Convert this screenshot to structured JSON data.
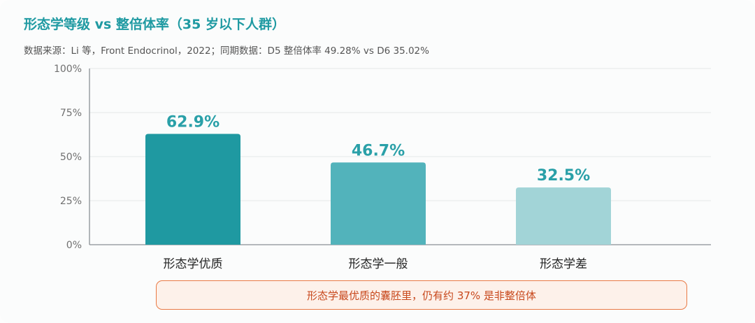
{
  "title": "形态学等级 vs 整倍体率（35 岁以下人群）",
  "subtitle": "数据来源：Li 等，Front Endocrinol，2022；同期数据：D5 整倍体率 49.28% vs D6 35.02%",
  "callout": "形态学最优质的囊胚里，仍有约 37% 是非整倍体",
  "colors": {
    "title": "#1f9aa2",
    "bar_label": "#2aa0a8",
    "callout_border": "#e97a45",
    "callout_text": "#c8481c"
  },
  "chart_data": {
    "type": "bar",
    "categories": [
      "形态学优质",
      "形态学一般",
      "形态学差"
    ],
    "values": [
      62.9,
      46.7,
      32.5
    ],
    "value_labels": [
      "62.9%",
      "46.7%",
      "32.5%"
    ],
    "bar_colors": [
      "#1f99a1",
      "#52b3bb",
      "#a2d4d7"
    ],
    "ylim": [
      0,
      100
    ],
    "yticks": [
      "0%",
      "25%",
      "50%",
      "75%",
      "100%"
    ],
    "ytick_values": [
      0,
      25,
      50,
      75,
      100
    ],
    "grid": true,
    "xlabel": "",
    "ylabel": ""
  }
}
